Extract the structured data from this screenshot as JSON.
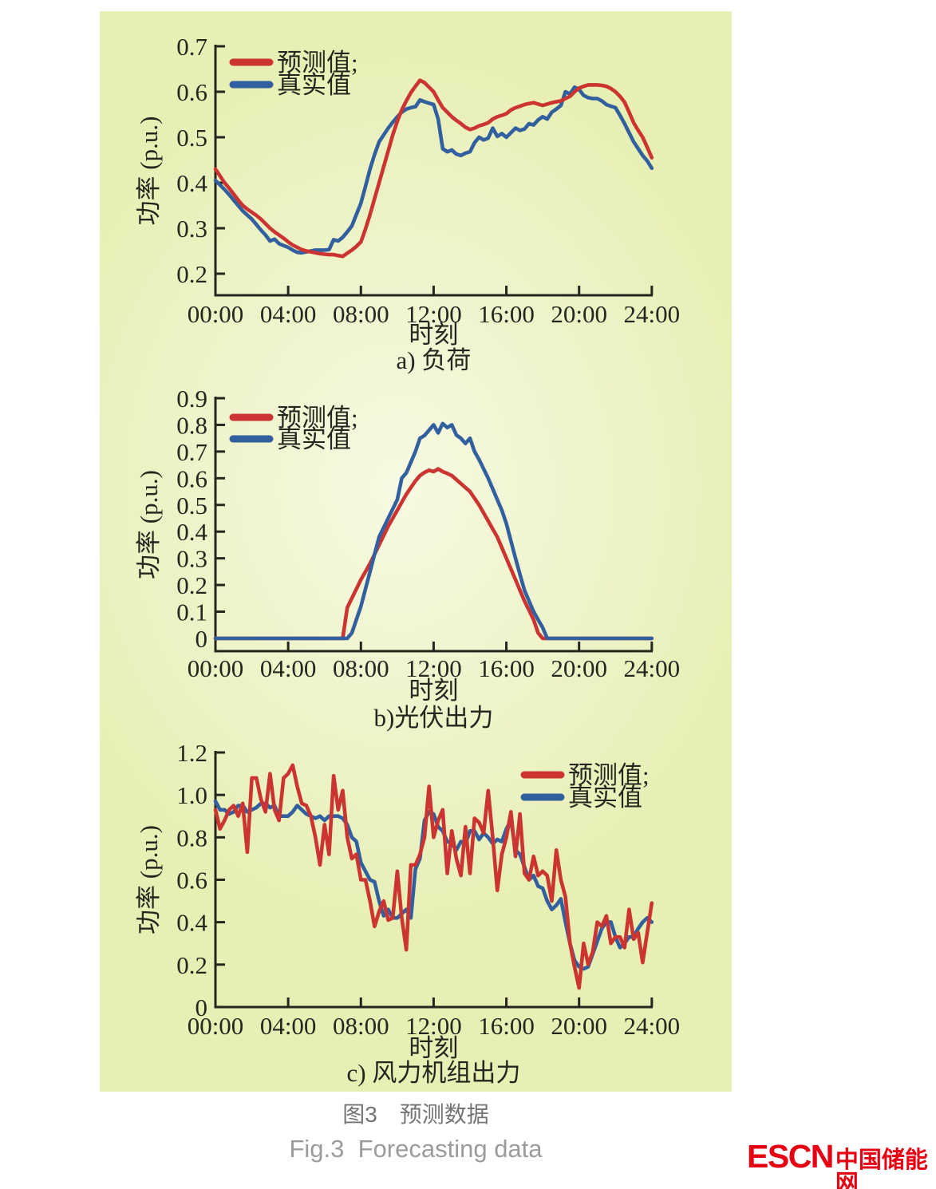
{
  "page": {
    "captions": {
      "zh": "图3　预测数据",
      "en": "Fig.3  Forecasting data"
    },
    "logo": {
      "en": "ESCN",
      "zh": "中国储能网",
      "color": "#e60012"
    }
  },
  "colors": {
    "forecast": "#cc3431",
    "actual": "#32609f",
    "axis": "#26261f"
  },
  "chart_data": [
    {
      "id": "a",
      "type": "line",
      "title": "a) 负荷",
      "xlabel": "时刻",
      "ylabel": "功率 (p.u.)",
      "ylim": [
        0.2,
        0.7
      ],
      "xtick_hours": [
        0,
        4,
        8,
        12,
        16,
        20,
        24
      ],
      "xtick_labels": [
        "00:00",
        "04:00",
        "08:00",
        "12:00",
        "16:00",
        "20:00",
        "24:00"
      ],
      "ytick_values": [
        0.7,
        0.6,
        0.5,
        0.4,
        0.3,
        0.2
      ],
      "ytick_labels": [
        "0.7",
        "0.6",
        "0.5",
        "0.4",
        "0.3",
        "0.2"
      ],
      "legend_labels": [
        "预测值;",
        "真实值"
      ],
      "x_start_hour": 0,
      "x_step_hour": 0.25,
      "series": [
        {
          "name": "预测值",
          "color": "#cc3431",
          "values": [
            0.43,
            0.415,
            0.4,
            0.388,
            0.375,
            0.362,
            0.35,
            0.342,
            0.335,
            0.328,
            0.32,
            0.31,
            0.3,
            0.292,
            0.285,
            0.278,
            0.27,
            0.263,
            0.258,
            0.253,
            0.25,
            0.248,
            0.246,
            0.244,
            0.243,
            0.242,
            0.242,
            0.24,
            0.238,
            0.245,
            0.252,
            0.26,
            0.27,
            0.298,
            0.33,
            0.365,
            0.4,
            0.435,
            0.47,
            0.505,
            0.535,
            0.56,
            0.58,
            0.598,
            0.612,
            0.625,
            0.62,
            0.61,
            0.6,
            0.582,
            0.565,
            0.555,
            0.545,
            0.537,
            0.53,
            0.522,
            0.517,
            0.52,
            0.525,
            0.528,
            0.532,
            0.54,
            0.545,
            0.548,
            0.552,
            0.56,
            0.565,
            0.568,
            0.572,
            0.574,
            0.576,
            0.573,
            0.57,
            0.573,
            0.576,
            0.578,
            0.58,
            0.585,
            0.59,
            0.6,
            0.608,
            0.612,
            0.615,
            0.615,
            0.615,
            0.614,
            0.612,
            0.607,
            0.6,
            0.59,
            0.577,
            0.555,
            0.532,
            0.515,
            0.5,
            0.478,
            0.455
          ]
        },
        {
          "name": "真实值",
          "color": "#32609f",
          "values": [
            0.405,
            0.395,
            0.385,
            0.374,
            0.362,
            0.35,
            0.338,
            0.329,
            0.32,
            0.308,
            0.296,
            0.285,
            0.272,
            0.276,
            0.266,
            0.262,
            0.258,
            0.252,
            0.247,
            0.246,
            0.248,
            0.25,
            0.252,
            0.252,
            0.252,
            0.253,
            0.275,
            0.272,
            0.28,
            0.292,
            0.305,
            0.33,
            0.355,
            0.392,
            0.43,
            0.462,
            0.49,
            0.505,
            0.52,
            0.533,
            0.545,
            0.555,
            0.562,
            0.565,
            0.567,
            0.582,
            0.578,
            0.575,
            0.572,
            0.54,
            0.475,
            0.468,
            0.472,
            0.463,
            0.46,
            0.465,
            0.468,
            0.488,
            0.5,
            0.494,
            0.498,
            0.52,
            0.502,
            0.508,
            0.5,
            0.51,
            0.52,
            0.515,
            0.518,
            0.53,
            0.527,
            0.538,
            0.545,
            0.54,
            0.555,
            0.562,
            0.57,
            0.6,
            0.595,
            0.61,
            0.605,
            0.592,
            0.587,
            0.585,
            0.585,
            0.58,
            0.572,
            0.568,
            0.565,
            0.548,
            0.53,
            0.51,
            0.49,
            0.475,
            0.46,
            0.448,
            0.432
          ]
        }
      ]
    },
    {
      "id": "b",
      "type": "line",
      "title": "b)光伏出力",
      "xlabel": "时刻",
      "ylabel": "功率 (p.u.)",
      "ylim": [
        0,
        0.9
      ],
      "xtick_hours": [
        0,
        4,
        8,
        12,
        16,
        20,
        24
      ],
      "xtick_labels": [
        "00:00",
        "04:00",
        "08:00",
        "12:00",
        "16:00",
        "20:00",
        "24:00"
      ],
      "ytick_values": [
        0.9,
        0.8,
        0.7,
        0.6,
        0.5,
        0.4,
        0.3,
        0.2,
        0.1,
        0
      ],
      "ytick_labels": [
        "0.9",
        "0.8",
        "0.7",
        "0.6",
        "0.5",
        "0.4",
        "0.3",
        "0.2",
        "0.1",
        "0"
      ],
      "legend_labels": [
        "预测值;",
        "真实值"
      ],
      "x_start_hour": 0,
      "x_step_hour": 0.25,
      "series": [
        {
          "name": "预测值",
          "color": "#cc3431",
          "values": [
            0,
            0,
            0,
            0,
            0,
            0,
            0,
            0,
            0,
            0,
            0,
            0,
            0,
            0,
            0,
            0,
            0,
            0,
            0,
            0,
            0,
            0,
            0,
            0,
            0,
            0,
            0,
            0,
            0,
            0.115,
            0.15,
            0.185,
            0.22,
            0.25,
            0.28,
            0.315,
            0.35,
            0.385,
            0.42,
            0.45,
            0.48,
            0.51,
            0.54,
            0.565,
            0.59,
            0.61,
            0.622,
            0.63,
            0.625,
            0.635,
            0.625,
            0.618,
            0.61,
            0.595,
            0.58,
            0.565,
            0.55,
            0.525,
            0.5,
            0.47,
            0.44,
            0.41,
            0.38,
            0.34,
            0.3,
            0.26,
            0.22,
            0.18,
            0.14,
            0.105,
            0.07,
            0.02,
            0,
            0,
            0,
            0,
            0,
            0,
            0,
            0,
            0,
            0,
            0,
            0,
            0,
            0,
            0,
            0,
            0,
            0,
            0,
            0,
            0,
            0,
            0,
            0,
            0
          ]
        },
        {
          "name": "真实值",
          "color": "#32609f",
          "values": [
            0,
            0,
            0,
            0,
            0,
            0,
            0,
            0,
            0,
            0,
            0,
            0,
            0,
            0,
            0,
            0,
            0,
            0,
            0,
            0,
            0,
            0,
            0,
            0,
            0,
            0,
            0,
            0,
            0,
            0,
            0.02,
            0.07,
            0.12,
            0.185,
            0.25,
            0.315,
            0.38,
            0.415,
            0.45,
            0.485,
            0.52,
            0.6,
            0.62,
            0.66,
            0.7,
            0.75,
            0.76,
            0.78,
            0.8,
            0.77,
            0.805,
            0.79,
            0.8,
            0.762,
            0.75,
            0.73,
            0.75,
            0.7,
            0.67,
            0.635,
            0.6,
            0.56,
            0.52,
            0.48,
            0.43,
            0.365,
            0.3,
            0.24,
            0.18,
            0.14,
            0.1,
            0.07,
            0.04,
            0,
            0,
            0,
            0,
            0,
            0,
            0,
            0,
            0,
            0,
            0,
            0,
            0,
            0,
            0,
            0,
            0,
            0,
            0,
            0,
            0,
            0,
            0,
            0
          ]
        }
      ]
    },
    {
      "id": "c",
      "type": "line",
      "title": "c) 风力机组出力",
      "xlabel": "时刻",
      "ylabel": "功率 (p.u.)",
      "ylim": [
        0,
        1.2
      ],
      "xtick_hours": [
        0,
        4,
        8,
        12,
        16,
        20,
        24
      ],
      "xtick_labels": [
        "00:00",
        "04:00",
        "08:00",
        "12:00",
        "16:00",
        "20:00",
        "24:00"
      ],
      "ytick_values": [
        1.2,
        1.0,
        0.8,
        0.6,
        0.4,
        0.2,
        0
      ],
      "ytick_labels": [
        "1.2",
        "1.0",
        "0.8",
        "0.6",
        "0.4",
        "0.2",
        "0"
      ],
      "legend_labels": [
        "预测值;",
        "真实值"
      ],
      "x_start_hour": 0,
      "x_step_hour": 0.25,
      "series": [
        {
          "name": "预测值",
          "color": "#cc3431",
          "values": [
            0.93,
            0.84,
            0.88,
            0.93,
            0.95,
            0.9,
            0.96,
            0.73,
            1.08,
            1.08,
            0.98,
            0.92,
            1.1,
            0.93,
            0.88,
            1.08,
            1.1,
            1.14,
            1.04,
            0.96,
            0.95,
            0.9,
            0.8,
            0.67,
            0.86,
            0.72,
            1.09,
            0.93,
            1.02,
            0.8,
            0.7,
            0.72,
            0.6,
            0.6,
            0.5,
            0.38,
            0.45,
            0.5,
            0.41,
            0.42,
            0.64,
            0.42,
            0.27,
            0.67,
            0.67,
            0.72,
            0.8,
            1.04,
            0.8,
            0.88,
            0.93,
            0.63,
            0.83,
            0.7,
            0.62,
            0.85,
            0.63,
            0.89,
            0.87,
            0.82,
            1.02,
            0.8,
            0.55,
            0.72,
            0.8,
            0.92,
            0.71,
            0.91,
            0.63,
            0.6,
            0.71,
            0.62,
            0.64,
            0.62,
            0.5,
            0.74,
            0.6,
            0.52,
            0.3,
            0.19,
            0.09,
            0.3,
            0.2,
            0.26,
            0.4,
            0.38,
            0.43,
            0.3,
            0.33,
            0.33,
            0.28,
            0.46,
            0.32,
            0.35,
            0.21,
            0.35,
            0.49
          ]
        },
        {
          "name": "真实值",
          "color": "#32609f",
          "values": [
            0.97,
            0.93,
            0.93,
            0.91,
            0.92,
            0.95,
            0.95,
            0.92,
            0.93,
            0.94,
            0.96,
            0.96,
            0.94,
            0.95,
            0.9,
            0.9,
            0.9,
            0.92,
            0.95,
            0.93,
            0.91,
            0.9,
            0.89,
            0.9,
            0.88,
            0.9,
            0.9,
            0.9,
            0.89,
            0.86,
            0.8,
            0.78,
            0.68,
            0.64,
            0.6,
            0.59,
            0.5,
            0.43,
            0.46,
            0.42,
            0.42,
            0.44,
            0.46,
            0.42,
            0.65,
            0.7,
            0.88,
            0.92,
            0.91,
            0.85,
            0.83,
            0.78,
            0.77,
            0.74,
            0.78,
            0.77,
            0.83,
            0.83,
            0.79,
            0.82,
            0.8,
            0.77,
            0.79,
            0.78,
            0.84,
            0.88,
            0.74,
            0.72,
            0.66,
            0.6,
            0.62,
            0.57,
            0.56,
            0.5,
            0.46,
            0.48,
            0.51,
            0.4,
            0.3,
            0.22,
            0.19,
            0.18,
            0.19,
            0.25,
            0.31,
            0.37,
            0.4,
            0.4,
            0.33,
            0.28,
            0.3,
            0.33,
            0.33,
            0.37,
            0.4,
            0.42,
            0.4
          ]
        }
      ]
    }
  ]
}
